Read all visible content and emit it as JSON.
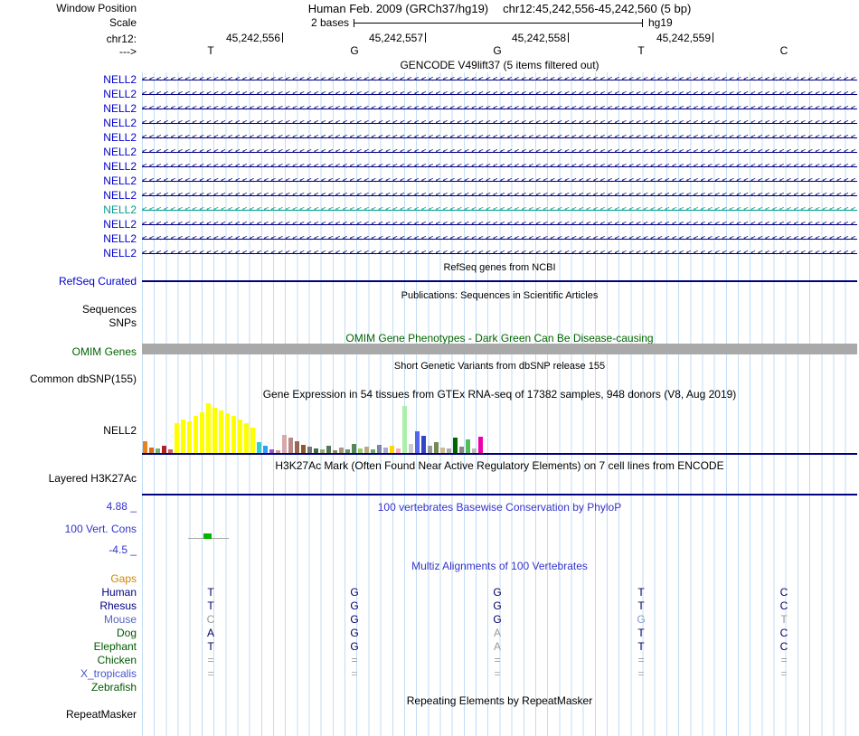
{
  "window": {
    "label": "Window Position",
    "assembly": "Human Feb. 2009 (GRCh37/hg19)",
    "position": "chr12:45,242,556-45,242,560 (5 bp)"
  },
  "scale": {
    "label": "Scale",
    "bar_label": "2 bases",
    "genome": "hg19"
  },
  "ruler": {
    "label": "chr12:",
    "ticks": [
      "45,242,556",
      "45,242,557",
      "45,242,558",
      "45,242,559"
    ]
  },
  "sequence": {
    "label": "--->",
    "bases": [
      "T",
      "G",
      "G",
      "T",
      "C"
    ]
  },
  "gencode": {
    "title": "GENCODE V49lift37 (5 items filtered out)",
    "transcripts": [
      {
        "label": "NELL2",
        "color": "#000080",
        "label_color": "#0000CD"
      },
      {
        "label": "NELL2",
        "color": "#000080",
        "label_color": "#0000CD"
      },
      {
        "label": "NELL2",
        "color": "#000080",
        "label_color": "#0000CD"
      },
      {
        "label": "NELL2",
        "color": "#000080",
        "label_color": "#0000CD"
      },
      {
        "label": "NELL2",
        "color": "#000080",
        "label_color": "#0000CD"
      },
      {
        "label": "NELL2",
        "color": "#000080",
        "label_color": "#0000CD"
      },
      {
        "label": "NELL2",
        "color": "#000080",
        "label_color": "#0000CD"
      },
      {
        "label": "NELL2",
        "color": "#000080",
        "label_color": "#0000CD"
      },
      {
        "label": "NELL2",
        "color": "#000080",
        "label_color": "#0000CD"
      },
      {
        "label": "NELL2",
        "color": "#009E8E",
        "label_color": "#009E8E"
      },
      {
        "label": "NELL2",
        "color": "#000080",
        "label_color": "#0000CD"
      },
      {
        "label": "NELL2",
        "color": "#000080",
        "label_color": "#0000CD"
      },
      {
        "label": "NELL2",
        "color": "#000080",
        "label_color": "#0000CD"
      }
    ]
  },
  "refseq": {
    "title": "RefSeq genes from NCBI",
    "label": "RefSeq Curated",
    "item_color": "#000080"
  },
  "publications": {
    "title": "Publications: Sequences in Scientific Articles",
    "sequences_label": "Sequences",
    "snps_label": "SNPs"
  },
  "omim": {
    "title": "OMIM Gene Phenotypes - Dark Green Can Be Disease-causing",
    "label": "OMIM Genes",
    "title_color": "#006400",
    "bar_color": "#A9A9A9"
  },
  "dbsnp": {
    "title": "Short Genetic Variants from dbSNP release 155",
    "label": "Common dbSNP(155)"
  },
  "gtex": {
    "title": "Gene Expression in 54 tissues from GTEx RNA-seq of 17382 samples, 948 donors (V8, Aug 2019)",
    "label": "NELL2",
    "chart_data": {
      "type": "bar",
      "title": "Gene Expression in 54 tissues from GTEx RNA-seq of 17382 samples, 948 donors (V8, Aug 2019)",
      "series_label": "NELL2",
      "bar_count": 54,
      "values": [
        13,
        6,
        5,
        8,
        4,
        33,
        37,
        35,
        41,
        45,
        55,
        50,
        47,
        44,
        41,
        37,
        33,
        28,
        12,
        8,
        4,
        3,
        20,
        17,
        13,
        9,
        7,
        5,
        4,
        8,
        3,
        6,
        4,
        10,
        5,
        7,
        4,
        9,
        6,
        8,
        5,
        52,
        10,
        24,
        19,
        8,
        12,
        6,
        5,
        17,
        7,
        15,
        5,
        18
      ],
      "colors": [
        "#E8821E",
        "#D96D14",
        "#74B374",
        "#B22222",
        "#CD5C5C",
        "#FFFF00",
        "#FFFF00",
        "#FFFF00",
        "#FFFF00",
        "#FFFF00",
        "#FFFF00",
        "#FFFF00",
        "#FFFF00",
        "#FFFF00",
        "#FFFF00",
        "#FFFF00",
        "#FFFF00",
        "#FFFF00",
        "#33CCCC",
        "#3399FF",
        "#9955CC",
        "#CC9999",
        "#D8A9A9",
        "#BB8888",
        "#996655",
        "#8B5A2B",
        "#777777",
        "#446644",
        "#99AA77",
        "#557755",
        "#888866",
        "#AA9977",
        "#669966",
        "#558855",
        "#99CC66",
        "#BBAA88",
        "#66AA66",
        "#7788AA",
        "#AAAACC",
        "#FFD700",
        "#FFAABB",
        "#AAF0AA",
        "#CCCCCC",
        "#5566EE",
        "#3344CC",
        "#999999",
        "#778855",
        "#CCBB99",
        "#AAAAAA",
        "#006400",
        "#888888",
        "#55BB55",
        "#BBBBBB",
        "#EE00AA"
      ]
    }
  },
  "h3k27ac": {
    "title": "H3K27Ac Mark (Often Found Near Active Regulatory Elements) on 7 cell lines from ENCODE",
    "label": "Layered H3K27Ac"
  },
  "conservation": {
    "title": "100 vertebrates Basewise Conservation by PhyloP",
    "label": "100 Vert. Cons",
    "max_label": "4.88 _",
    "min_label": "-4.5 _",
    "score_bar_color": "#00B400"
  },
  "multiz": {
    "title": "Multiz Alignments of 100 Vertebrates",
    "rows": [
      {
        "species": "Gaps",
        "color": "#CC8800",
        "bases": [
          "",
          "",
          "",
          "",
          ""
        ],
        "base_colors": [
          "",
          "",
          "",
          "",
          ""
        ]
      },
      {
        "species": "Human",
        "color": "#000080",
        "bases": [
          "T",
          "G",
          "G",
          "T",
          "C"
        ],
        "base_colors": [
          "#000066",
          "#000066",
          "#000066",
          "#000066",
          "#000066"
        ]
      },
      {
        "species": "Rhesus",
        "color": "#000080",
        "bases": [
          "T",
          "G",
          "G",
          "T",
          "C"
        ],
        "base_colors": [
          "#000066",
          "#000066",
          "#000066",
          "#000066",
          "#000066"
        ]
      },
      {
        "species": "Mouse",
        "color": "#5566BB",
        "bases": [
          "C",
          "G",
          "G",
          "G",
          "T"
        ],
        "base_colors": [
          "#999999",
          "#000066",
          "#000066",
          "#8899CC",
          "#999999"
        ]
      },
      {
        "species": "Dog",
        "color": "#005900",
        "bases": [
          "A",
          "G",
          "A",
          "T",
          "C"
        ],
        "base_colors": [
          "#000066",
          "#000066",
          "#999999",
          "#000066",
          "#000066"
        ]
      },
      {
        "species": "Elephant",
        "color": "#005900",
        "bases": [
          "T",
          "G",
          "A",
          "T",
          "C"
        ],
        "base_colors": [
          "#000066",
          "#000066",
          "#999999",
          "#000066",
          "#000066"
        ]
      },
      {
        "species": "Chicken",
        "color": "#005900",
        "bases": [
          "=",
          "=",
          "=",
          "=",
          "="
        ],
        "base_colors": [
          "#999999",
          "#999999",
          "#999999",
          "#999999",
          "#999999"
        ]
      },
      {
        "species": "X_tropicalis",
        "color": "#4455CC",
        "bases": [
          "=",
          "=",
          "=",
          "=",
          "="
        ],
        "base_colors": [
          "#AAAAAA",
          "#AAAAAA",
          "#AAAAAA",
          "#AAAAAA",
          "#AAAAAA"
        ]
      },
      {
        "species": "Zebrafish",
        "color": "#005900",
        "bases": [
          "",
          "",
          "",
          "",
          ""
        ],
        "base_colors": [
          "",
          "",
          "",
          "",
          ""
        ]
      }
    ]
  },
  "repeatmasker": {
    "title": "Repeating Elements by RepeatMasker",
    "label": "RepeatMasker"
  }
}
